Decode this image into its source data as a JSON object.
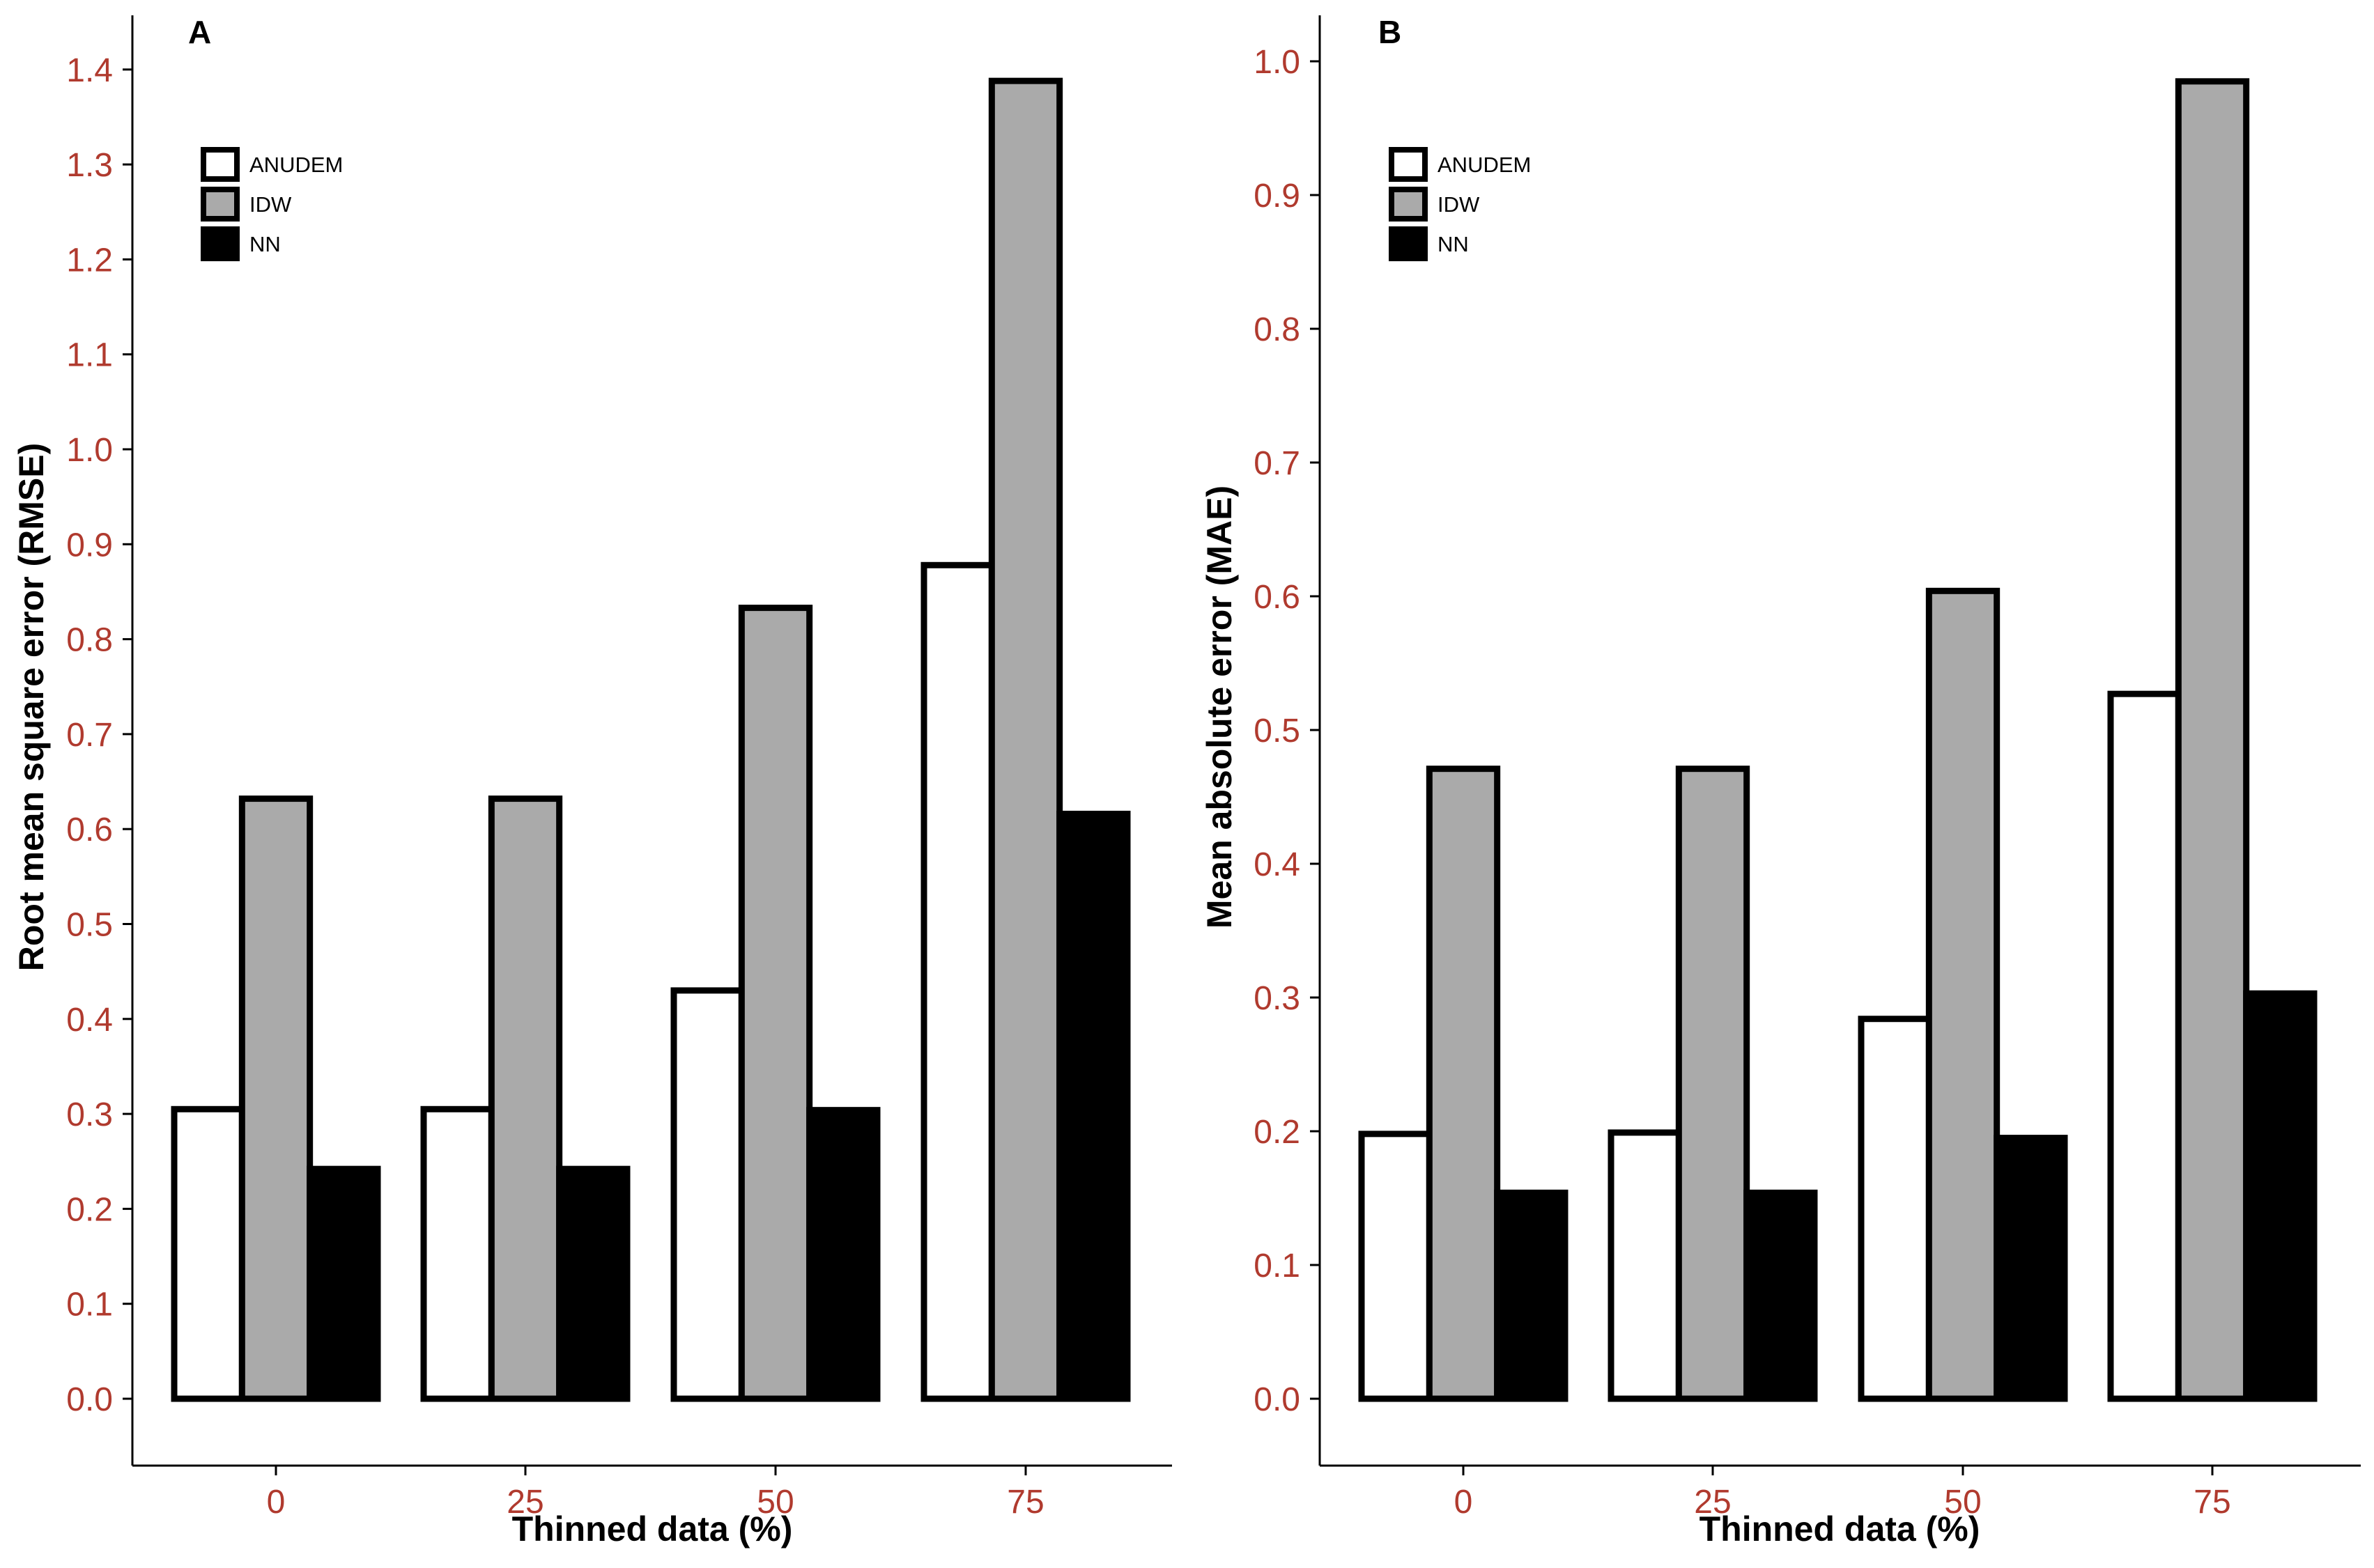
{
  "chart_data": [
    {
      "type": "bar",
      "panel_label": "A",
      "categories": [
        "0",
        "25",
        "50",
        "75"
      ],
      "series": [
        {
          "name": "ANUDEM",
          "values": [
            0.305,
            0.305,
            0.43,
            0.878
          ]
        },
        {
          "name": "IDW",
          "values": [
            0.632,
            0.632,
            0.833,
            1.388
          ]
        },
        {
          "name": "NN",
          "values": [
            0.242,
            0.242,
            0.304,
            0.616
          ]
        }
      ],
      "title": "",
      "xlabel": "Thinned data (%)",
      "ylabel": "Root mean square error (RMSE)",
      "yticks": [
        "0.0",
        "0.1",
        "0.2",
        "0.3",
        "0.4",
        "0.5",
        "0.6",
        "0.7",
        "0.8",
        "0.9",
        "1.0",
        "1.1",
        "1.2",
        "1.3",
        "1.4"
      ],
      "ylim": [
        -0.07,
        1.405
      ],
      "grid": false,
      "legend_position": "top-left"
    },
    {
      "type": "bar",
      "panel_label": "B",
      "categories": [
        "0",
        "25",
        "50",
        "75"
      ],
      "series": [
        {
          "name": "ANUDEM",
          "values": [
            0.198,
            0.199,
            0.284,
            0.527
          ]
        },
        {
          "name": "IDW",
          "values": [
            0.471,
            0.471,
            0.604,
            0.985
          ]
        },
        {
          "name": "NN",
          "values": [
            0.154,
            0.154,
            0.195,
            0.303
          ]
        }
      ],
      "title": "",
      "xlabel": "Thinned data (%)",
      "ylabel": "Mean absolute error (MAE)",
      "yticks": [
        "0.0",
        "0.1",
        "0.2",
        "0.3",
        "0.4",
        "0.5",
        "0.6",
        "0.7",
        "0.8",
        "0.9",
        "1.0"
      ],
      "ylim": [
        -0.05,
        1.0
      ],
      "grid": false,
      "legend_position": "top-left"
    }
  ],
  "colors": {
    "ANUDEM": "#ffffff",
    "IDW": "#aaaaaa",
    "NN": "#000000",
    "tick_label": "#b03a2e",
    "outline": "#000000"
  }
}
